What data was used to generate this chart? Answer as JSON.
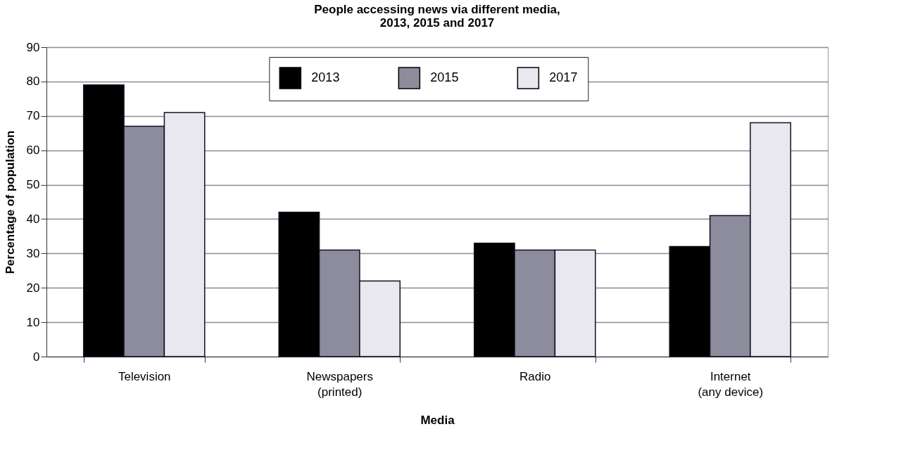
{
  "chart_data": {
    "type": "bar",
    "title": "People accessing news via different media, 2013, 2015 and 2017",
    "xlabel": "Media",
    "ylabel": "Percentage of population",
    "categories": [
      "Television",
      "Newspapers (printed)",
      "Radio",
      "Internet (any device)"
    ],
    "series": [
      {
        "name": "2013",
        "color": "#000000",
        "values": [
          79,
          42,
          33,
          32
        ]
      },
      {
        "name": "2015",
        "color": "#8c8c9c",
        "values": [
          67,
          31,
          31,
          41
        ]
      },
      {
        "name": "2017",
        "color": "#e8e8ee",
        "values": [
          71,
          22,
          31,
          68
        ]
      }
    ],
    "ylim": [
      0,
      90
    ],
    "yticks": [
      0,
      10,
      20,
      30,
      40,
      50,
      60,
      70,
      80,
      90
    ],
    "grid": "y",
    "legend": "top"
  }
}
